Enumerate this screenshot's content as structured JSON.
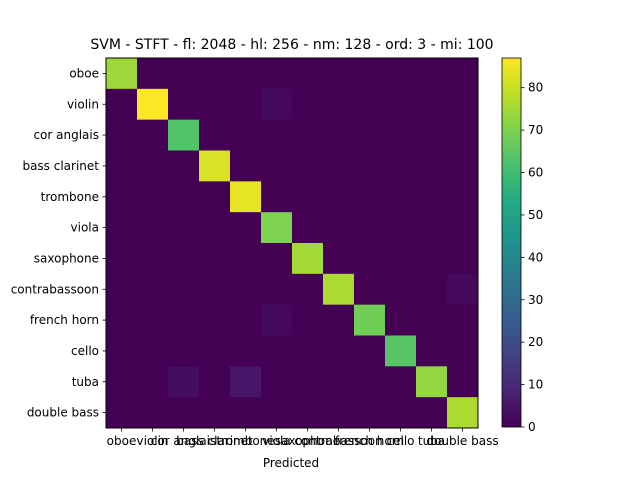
{
  "chart_data": {
    "type": "heatmap",
    "title": "SVM - STFT - fl: 2048 - hl: 256 - nm: 128 - ord: 3 - mi: 100",
    "xlabel": "Predicted",
    "ylabel": "",
    "categories": [
      "oboe",
      "violin",
      "cor anglais",
      "bass clarinet",
      "trombone",
      "viola",
      "saxophone",
      "contrabassoon",
      "french horn",
      "cello",
      "tuba",
      "double bass"
    ],
    "matrix": [
      [
        74,
        0,
        0,
        0,
        0,
        0,
        0,
        0,
        0,
        0,
        0,
        0
      ],
      [
        0,
        87,
        0,
        0,
        0,
        2,
        0,
        0,
        0,
        0,
        0,
        0
      ],
      [
        0,
        0,
        63,
        0,
        0,
        0,
        0,
        0,
        0,
        0,
        0,
        0
      ],
      [
        0,
        0,
        0,
        82,
        0,
        0,
        0,
        0,
        0,
        0,
        0,
        0
      ],
      [
        0,
        0,
        0,
        0,
        84,
        0,
        0,
        0,
        0,
        0,
        0,
        0
      ],
      [
        0,
        0,
        0,
        0,
        0,
        70,
        0,
        0,
        0,
        0,
        0,
        0
      ],
      [
        0,
        0,
        0,
        0,
        0,
        0,
        75,
        0,
        0,
        0,
        0,
        0
      ],
      [
        0,
        0,
        0,
        0,
        0,
        0,
        0,
        76,
        0,
        0,
        0,
        2
      ],
      [
        0,
        0,
        0,
        0,
        0,
        2,
        0,
        0,
        68,
        0,
        0,
        0
      ],
      [
        0,
        0,
        0,
        0,
        0,
        0,
        0,
        0,
        0,
        64,
        0,
        0
      ],
      [
        0,
        0,
        3,
        0,
        5,
        0,
        0,
        0,
        0,
        0,
        73,
        0
      ],
      [
        0,
        0,
        0,
        0,
        0,
        0,
        0,
        0,
        0,
        0,
        0,
        76
      ]
    ],
    "colorbar": {
      "range": [
        0,
        87
      ],
      "ticks": [
        "0",
        "10",
        "20",
        "30",
        "40",
        "50",
        "60",
        "70",
        "80"
      ],
      "colormap": "viridis"
    },
    "grid": false
  }
}
